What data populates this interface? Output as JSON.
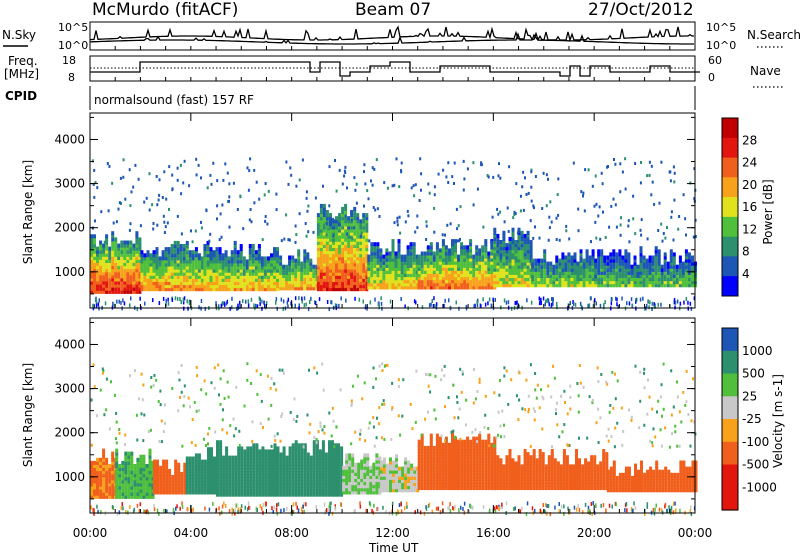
{
  "header": {
    "station": "McMurdo (fitACF)",
    "beam": "Beam 07",
    "date": "27/Oct/2012"
  },
  "noise_panel": {
    "left_label": "N.Sky",
    "right_label": "N.Search",
    "left_ticks": [
      "10^5",
      "10^0"
    ],
    "right_ticks": [
      "10^5",
      "10^0"
    ]
  },
  "freq_panel": {
    "left_label_1": "Freq.",
    "left_label_2": "[MHz]",
    "right_label": "Nave",
    "left_ticks": [
      "18",
      "8"
    ],
    "right_ticks": [
      "60",
      "0"
    ]
  },
  "cpid_panel": {
    "label": "CPID",
    "text": "normalsound (fast) 157 RF"
  },
  "power_panel": {
    "ylabel": "Slant Range [km]",
    "yticks": [
      "1000",
      "2000",
      "3000",
      "4000"
    ],
    "colorbar_label": "Power [dB]",
    "colorbar_ticks": [
      "4",
      "8",
      "12",
      "16",
      "20",
      "24",
      "28"
    ]
  },
  "velocity_panel": {
    "ylabel": "Slant Range [km]",
    "yticks": [
      "1000",
      "2000",
      "3000",
      "4000"
    ],
    "colorbar_label": "Velocity [m s-1]",
    "colorbar_ticks": [
      "1000",
      "500",
      "25",
      "-25",
      "-100",
      "-500",
      "-1000"
    ]
  },
  "x_axis": {
    "label": "Time UT",
    "ticks": [
      "00:00",
      "04:00",
      "08:00",
      "12:00",
      "16:00",
      "20:00",
      "00:00"
    ]
  },
  "chart_data": [
    {
      "type": "heatmap",
      "title": "Power",
      "ylabel": "Slant Range [km]",
      "xlabel": "Time UT",
      "ylim": [
        180,
        4600
      ],
      "xlim": [
        0,
        24
      ],
      "colorbar": {
        "label": "Power [dB]",
        "range": [
          0,
          30
        ],
        "colors": [
          "#0000ff",
          "#1d56b5",
          "#2c8f6e",
          "#4fbf3c",
          "#dfe21c",
          "#f7a21a",
          "#f15f1c",
          "#e2160f",
          "#c00000"
        ]
      },
      "bands": [
        {
          "t0": 0.0,
          "t1": 2.0,
          "r_low": 500,
          "r_high": 1700,
          "power": 26
        },
        {
          "t0": 2.0,
          "t1": 4.5,
          "r_low": 560,
          "r_high": 1500,
          "power": 20
        },
        {
          "t0": 4.5,
          "t1": 7.5,
          "r_low": 560,
          "r_high": 1450,
          "power": 18
        },
        {
          "t0": 7.5,
          "t1": 9.0,
          "r_low": 580,
          "r_high": 1300,
          "power": 19
        },
        {
          "t0": 9.0,
          "t1": 11.0,
          "r_low": 560,
          "r_high": 2300,
          "power": 25
        },
        {
          "t0": 11.0,
          "t1": 13.0,
          "r_low": 600,
          "r_high": 1500,
          "power": 17
        },
        {
          "t0": 13.0,
          "t1": 16.0,
          "r_low": 600,
          "r_high": 1500,
          "power": 21
        },
        {
          "t0": 16.0,
          "t1": 17.5,
          "r_low": 650,
          "r_high": 1800,
          "power": 16
        },
        {
          "t0": 17.5,
          "t1": 20.0,
          "r_low": 650,
          "r_high": 1300,
          "power": 14
        },
        {
          "t0": 20.0,
          "t1": 24.0,
          "r_low": 650,
          "r_high": 1300,
          "power": 12
        }
      ]
    },
    {
      "type": "heatmap",
      "title": "Velocity",
      "ylabel": "Slant Range [km]",
      "xlabel": "Time UT",
      "ylim": [
        180,
        4600
      ],
      "xlim": [
        0,
        24
      ],
      "colorbar": {
        "label": "Velocity [m s-1]",
        "range": [
          -1000,
          1000
        ],
        "colors": [
          "#e2160f",
          "#f15f1c",
          "#f7a21a",
          "#c8c8c8",
          "#4fbf3c",
          "#2c8f6e",
          "#1d56b5"
        ]
      },
      "bands": [
        {
          "t0": 0.0,
          "t1": 1.0,
          "r_low": 500,
          "r_high": 1400,
          "velocity": -120
        },
        {
          "t0": 1.0,
          "t1": 2.5,
          "r_low": 500,
          "r_high": 1400,
          "velocity": 80
        },
        {
          "t0": 2.5,
          "t1": 3.8,
          "r_low": 600,
          "r_high": 1200,
          "velocity": -150
        },
        {
          "t0": 3.8,
          "t1": 5.0,
          "r_low": 600,
          "r_high": 1450,
          "velocity": 150
        },
        {
          "t0": 5.0,
          "t1": 10.0,
          "r_low": 550,
          "r_high": 1600,
          "velocity": 300
        },
        {
          "t0": 10.0,
          "t1": 11.5,
          "r_low": 600,
          "r_high": 1400,
          "velocity": 30
        },
        {
          "t0": 11.5,
          "t1": 13.0,
          "r_low": 650,
          "r_high": 1300,
          "velocity": 0
        },
        {
          "t0": 13.0,
          "t1": 16.0,
          "r_low": 700,
          "r_high": 1800,
          "velocity": -200
        },
        {
          "t0": 16.0,
          "t1": 20.5,
          "r_low": 700,
          "r_high": 1400,
          "velocity": -150
        },
        {
          "t0": 20.5,
          "t1": 24.0,
          "r_low": 650,
          "r_high": 1150,
          "velocity": -250
        }
      ]
    }
  ]
}
